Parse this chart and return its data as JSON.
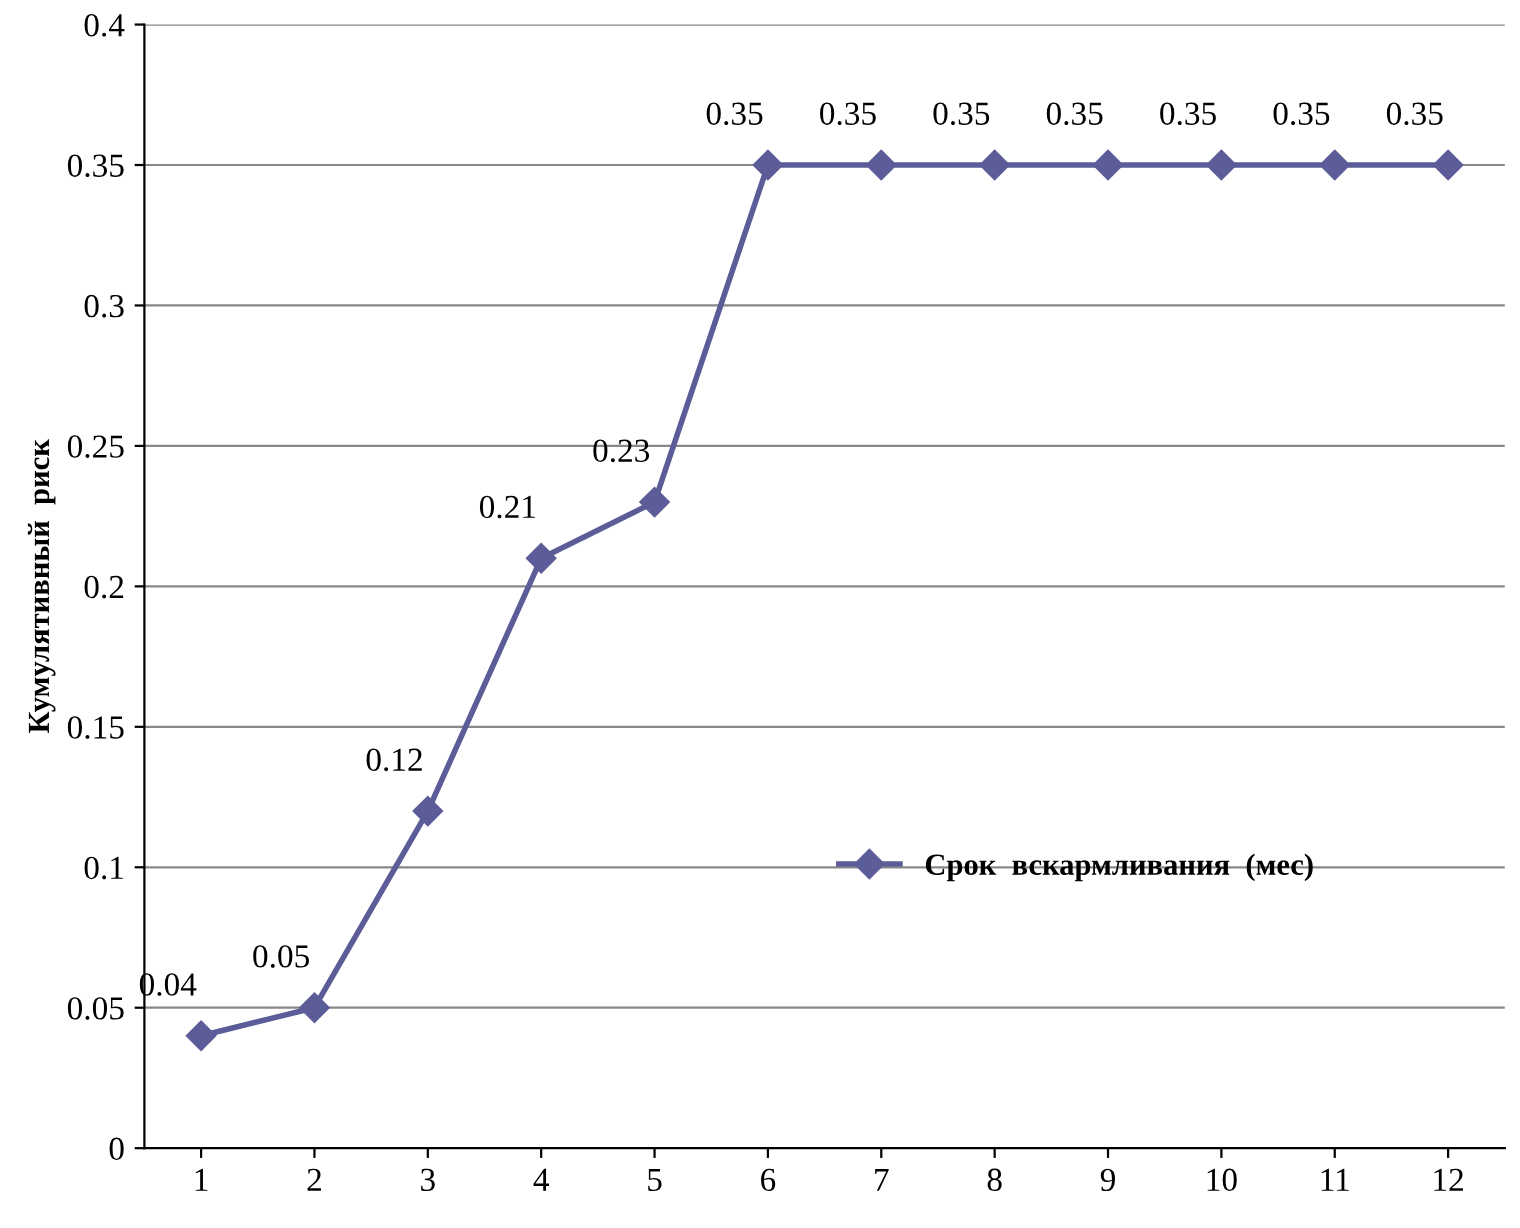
{
  "chart_data": {
    "type": "line",
    "ylabel": "Кумулятивный  риск",
    "categories": [
      "1",
      "2",
      "3",
      "4",
      "5",
      "6",
      "7",
      "8",
      "9",
      "10",
      "11",
      "12"
    ],
    "series": [
      {
        "name": "Срок  вскармливания  (мес)",
        "color": "#5c5c99",
        "values": [
          0.04,
          0.05,
          0.12,
          0.21,
          0.23,
          0.35,
          0.35,
          0.35,
          0.35,
          0.35,
          0.35,
          0.35
        ]
      }
    ],
    "ylim": [
      0,
      0.4
    ],
    "yticks": [
      0,
      0.05,
      0.1,
      0.15,
      0.2,
      0.25,
      0.3,
      0.35,
      0.4
    ],
    "grid": "y",
    "legend": "right",
    "marker": "diamond",
    "line_style": "solid",
    "data_labels": true
  }
}
